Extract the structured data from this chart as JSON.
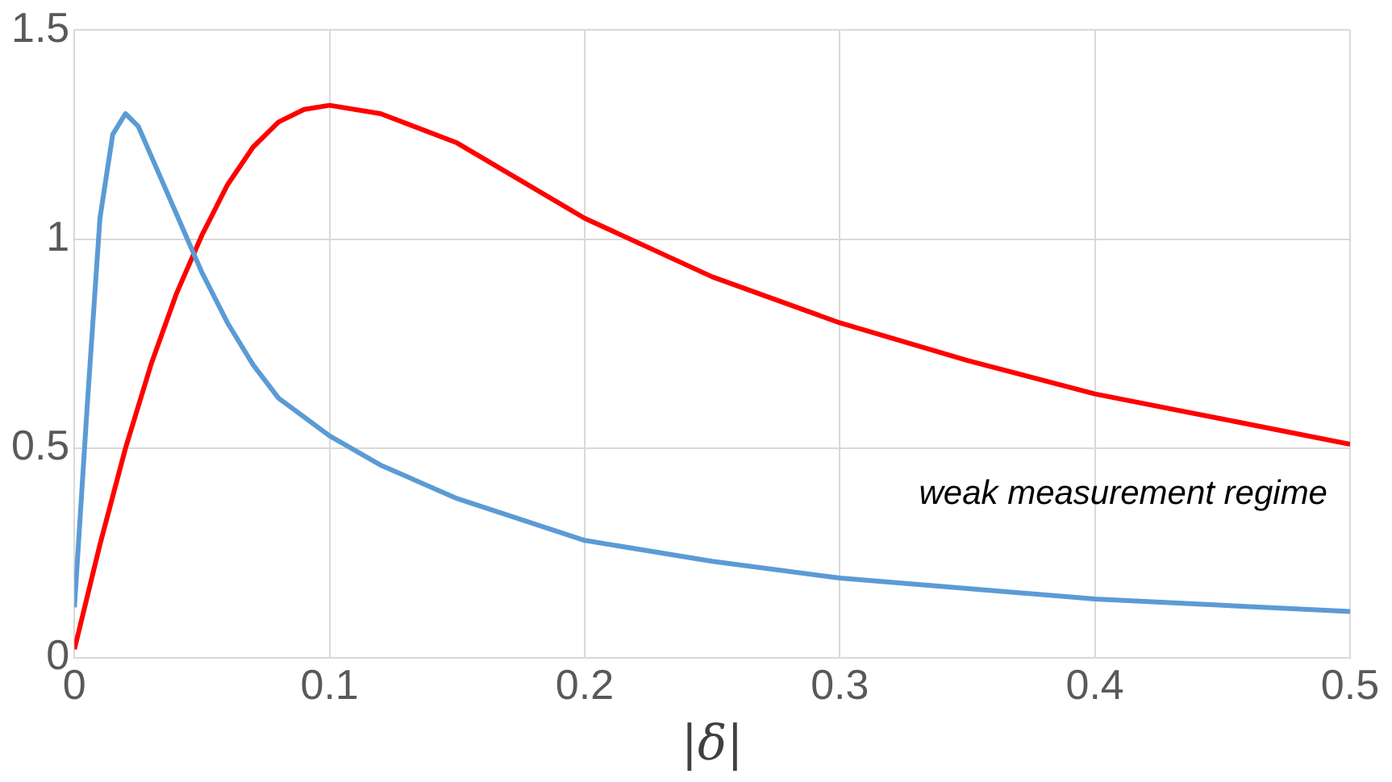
{
  "chart_data": {
    "type": "line",
    "xlabel": "|δ|",
    "xlim": [
      0,
      0.5
    ],
    "xticks": [
      0,
      0.1,
      0.2,
      0.3,
      0.4,
      0.5
    ],
    "ylim": [
      0,
      1.5
    ],
    "yticks": [
      0,
      0.5,
      1,
      1.5
    ],
    "grid": true,
    "legend": false,
    "marker": "none",
    "line_style": "solid",
    "annotations": [
      "weak measurement regime"
    ],
    "series": [
      {
        "color": "#5b9bd5",
        "x": [
          0,
          0.005,
          0.01,
          0.015,
          0.02,
          0.025,
          0.03,
          0.04,
          0.05,
          0.06,
          0.07,
          0.08,
          0.1,
          0.12,
          0.15,
          0.2,
          0.25,
          0.3,
          0.35,
          0.4,
          0.45,
          0.5
        ],
        "values": [
          0.12,
          0.6,
          1.05,
          1.25,
          1.3,
          1.27,
          1.2,
          1.06,
          0.92,
          0.8,
          0.7,
          0.62,
          0.53,
          0.46,
          0.38,
          0.28,
          0.23,
          0.19,
          0.165,
          0.14,
          0.125,
          0.11
        ]
      },
      {
        "color": "#ff0000",
        "x": [
          0,
          0.01,
          0.02,
          0.03,
          0.04,
          0.05,
          0.06,
          0.07,
          0.08,
          0.09,
          0.1,
          0.12,
          0.15,
          0.2,
          0.25,
          0.3,
          0.35,
          0.4,
          0.45,
          0.5
        ],
        "values": [
          0.02,
          0.27,
          0.5,
          0.7,
          0.87,
          1.01,
          1.13,
          1.22,
          1.28,
          1.31,
          1.32,
          1.3,
          1.23,
          1.05,
          0.91,
          0.8,
          0.71,
          0.63,
          0.57,
          0.51
        ]
      }
    ]
  }
}
